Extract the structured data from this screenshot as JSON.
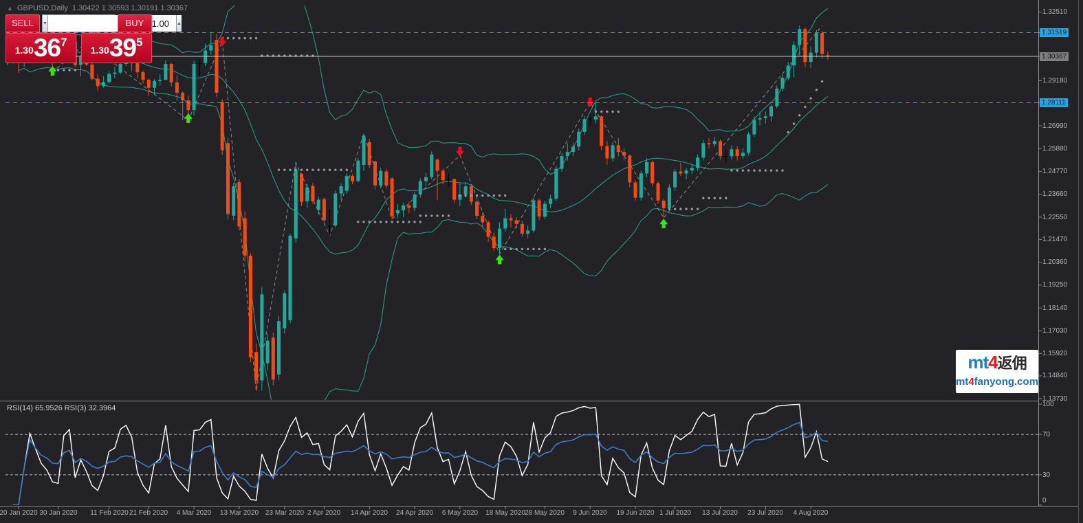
{
  "title": {
    "symbol_period": "GBPUSD,Daily",
    "ohlc_text": "1.30422 1.30593 1.30191 1.30367",
    "collapse_icon": "▲"
  },
  "trade_panel": {
    "sell_label": "SELL",
    "buy_label": "BUY",
    "volume_value": "1.00",
    "spinner_down": "▼",
    "spinner_up": "▲",
    "bid": {
      "small": "1.30",
      "big": "36",
      "sup": "7"
    },
    "ask": {
      "small": "1.30",
      "big": "39",
      "sup": "5"
    }
  },
  "rsi_panel": {
    "label": "RSI(14) 65.9526  RSI(3) 32.3964",
    "levels": [
      70,
      30
    ],
    "axis_labels": [
      {
        "v": 100,
        "t": "100"
      },
      {
        "v": 70,
        "t": "70"
      },
      {
        "v": 30,
        "t": "30"
      },
      {
        "v": 0,
        "t": "0"
      }
    ]
  },
  "watermark": {
    "mt": "mt",
    "four": "4",
    "cn": "返佣",
    "site_prefix": "mt",
    "site_four": "4",
    "site_rest": "fanyong.com"
  },
  "price_axis": [
    {
      "t": "1.32510",
      "v": 1.3251,
      "style": "plain"
    },
    {
      "t": "1.31519",
      "v": 1.31519,
      "style": "cyan"
    },
    {
      "t": "1.30367",
      "v": 1.30367,
      "style": "gray"
    },
    {
      "t": "1.29180",
      "v": 1.2918,
      "style": "plain"
    },
    {
      "t": "1.28111",
      "v": 1.28111,
      "style": "cyan"
    },
    {
      "t": "1.26990",
      "v": 1.2699,
      "style": "plain"
    },
    {
      "t": "1.25880",
      "v": 1.2588,
      "style": "plain"
    },
    {
      "t": "1.24770",
      "v": 1.2477,
      "style": "plain"
    },
    {
      "t": "1.23660",
      "v": 1.2366,
      "style": "plain"
    },
    {
      "t": "1.22550",
      "v": 1.2255,
      "style": "plain"
    },
    {
      "t": "1.21470",
      "v": 1.2147,
      "style": "plain"
    },
    {
      "t": "1.20360",
      "v": 1.2036,
      "style": "plain"
    },
    {
      "t": "1.19250",
      "v": 1.1925,
      "style": "plain"
    },
    {
      "t": "1.18140",
      "v": 1.1814,
      "style": "plain"
    },
    {
      "t": "1.17030",
      "v": 1.1703,
      "style": "plain"
    },
    {
      "t": "1.15920",
      "v": 1.1592,
      "style": "plain"
    },
    {
      "t": "1.14840",
      "v": 1.1484,
      "style": "plain"
    },
    {
      "t": "1.13730",
      "v": 1.1373,
      "style": "plain"
    }
  ],
  "date_axis": [
    {
      "i": 2,
      "t": "20 Jan 2020"
    },
    {
      "i": 9,
      "t": "30 Jan 2020"
    },
    {
      "i": 18,
      "t": "11 Feb 2020"
    },
    {
      "i": 25,
      "t": "21 Feb 2020"
    },
    {
      "i": 33,
      "t": "4 Mar 2020"
    },
    {
      "i": 41,
      "t": "13 Mar 2020"
    },
    {
      "i": 49,
      "t": "23 Mar 2020"
    },
    {
      "i": 56,
      "t": "2 Apr 2020"
    },
    {
      "i": 64,
      "t": "14 Apr 2020"
    },
    {
      "i": 72,
      "t": "24 Apr 2020"
    },
    {
      "i": 80,
      "t": "6 May 2020"
    },
    {
      "i": 88,
      "t": "18 May 2020"
    },
    {
      "i": 95,
      "t": "28 May 2020"
    },
    {
      "i": 103,
      "t": "9 Jun 2020"
    },
    {
      "i": 111,
      "t": "19 Jun 2020"
    },
    {
      "i": 118,
      "t": "1 Jul 2020"
    },
    {
      "i": 126,
      "t": "13 Jul 2020"
    },
    {
      "i": 134,
      "t": "23 Jul 2020"
    },
    {
      "i": 142,
      "t": "4 Aug 2020"
    }
  ],
  "colors": {
    "background": "#232327",
    "bull": "#21a99c",
    "bear": "#f64b0e",
    "doji_dark": "#000000",
    "band": "#26a394",
    "dots": "#9a9a9a",
    "zigzag": "#8c8c8c",
    "cyan_line": "#26a5e3",
    "price_line": "#c9c9c9",
    "axis_line": "#8a8a8a",
    "rsi_fast": "#ffffff",
    "rsi_slow": "#3d7cc9",
    "arrow_up": "#3ce314",
    "arrow_down": "#ea0f1f",
    "panel_red": "#cf0d2c"
  },
  "chart_data": {
    "type": "candlestick-with-indicators",
    "symbol": "GBPUSD",
    "timeframe": "Daily",
    "y_axis_range": [
      1.1363,
      1.3285
    ],
    "indicators": {
      "bollinger": {
        "period": 20,
        "deviation": 2
      },
      "rsi_periods": [
        14,
        3
      ],
      "rsi_levels": [
        70,
        30
      ]
    },
    "hlines": [
      {
        "price": 1.31519,
        "style": "cyan-dashed"
      },
      {
        "price": 1.28111,
        "style": "cyan-dashed"
      },
      {
        "price": 1.30367,
        "style": "current-price"
      }
    ],
    "candles": [
      [
        1.3008,
        1.3085,
        1.2995,
        1.3076
      ],
      [
        1.3076,
        1.308,
        1.3002,
        1.3013
      ],
      [
        1.3013,
        1.3025,
        1.2955,
        1.3005
      ],
      [
        1.3005,
        1.3052,
        1.2985,
        1.3047
      ],
      [
        1.3047,
        1.314,
        1.304,
        1.3135
      ],
      [
        1.3135,
        1.314,
        1.3085,
        1.3105
      ],
      [
        1.3105,
        1.311,
        1.3055,
        1.3073
      ],
      [
        1.3073,
        1.3085,
        1.302,
        1.3057
      ],
      [
        1.3057,
        1.3062,
        1.2954,
        1.3024
      ],
      [
        1.3024,
        1.3045,
        1.2995,
        1.3019
      ],
      [
        1.3019,
        1.3095,
        1.301,
        1.3091
      ],
      [
        1.3091,
        1.3128,
        1.3045,
        1.311
      ],
      [
        1.311,
        1.3115,
        1.2985,
        1.2995
      ],
      [
        1.2995,
        1.3045,
        1.294,
        1.3033
      ],
      [
        1.3033,
        1.307,
        1.299,
        1.2997
      ],
      [
        1.2997,
        1.3005,
        1.292,
        1.2928
      ],
      [
        1.2928,
        1.295,
        1.287,
        1.2892
      ],
      [
        1.2892,
        1.294,
        1.2885,
        1.2912
      ],
      [
        1.2912,
        1.2965,
        1.2905,
        1.2952
      ],
      [
        1.2952,
        1.2985,
        1.293,
        1.2958
      ],
      [
        1.2958,
        1.3015,
        1.295,
        1.3
      ],
      [
        1.3,
        1.3045,
        1.299,
        1.3012
      ],
      [
        1.3012,
        1.302,
        1.2965,
        1.3003
      ],
      [
        1.3003,
        1.301,
        1.293,
        1.296
      ],
      [
        1.296,
        1.2968,
        1.2905,
        1.2923
      ],
      [
        1.2923,
        1.293,
        1.2845,
        1.2884
      ],
      [
        1.2884,
        1.2925,
        1.285,
        1.2917
      ],
      [
        1.2917,
        1.295,
        1.2895,
        1.2923
      ],
      [
        1.2923,
        1.3018,
        1.292,
        1.3
      ],
      [
        1.3,
        1.3005,
        1.289,
        1.291
      ],
      [
        1.291,
        1.2945,
        1.282,
        1.286
      ],
      [
        1.286,
        1.2865,
        1.2726,
        1.2823
      ],
      [
        1.2823,
        1.2845,
        1.2715,
        1.2776
      ],
      [
        1.2776,
        1.3015,
        1.275,
        1.3
      ],
      [
        1.3,
        1.3022,
        1.294,
        1.3005
      ],
      [
        1.3005,
        1.3098,
        1.299,
        1.3065
      ],
      [
        1.3065,
        1.3155,
        1.3045,
        1.309
      ],
      [
        1.3117,
        1.3145,
        1.284,
        1.286
      ],
      [
        1.2815,
        1.283,
        1.2558,
        1.2581
      ],
      [
        1.2615,
        1.264,
        1.2245,
        1.227
      ],
      [
        1.2262,
        1.2422,
        1.224,
        1.2405
      ],
      [
        1.2425,
        1.244,
        1.219,
        1.221
      ],
      [
        1.225,
        1.2285,
        1.204,
        1.2068
      ],
      [
        1.2068,
        1.208,
        1.155,
        1.1575
      ],
      [
        1.16,
        1.164,
        1.141,
        1.1462
      ],
      [
        1.1462,
        1.1915,
        1.1412,
        1.188
      ],
      [
        1.1545,
        1.169,
        1.151,
        1.1655
      ],
      [
        1.167,
        1.1695,
        1.1437,
        1.1466
      ],
      [
        1.149,
        1.1775,
        1.1465,
        1.175
      ],
      [
        1.1715,
        1.19,
        1.169,
        1.1885
      ],
      [
        1.1755,
        1.2175,
        1.174,
        1.2165
      ],
      [
        1.2152,
        1.2522,
        1.213,
        1.2486
      ],
      [
        1.2466,
        1.247,
        1.231,
        1.233
      ],
      [
        1.2333,
        1.2415,
        1.23,
        1.24
      ],
      [
        1.2407,
        1.242,
        1.232,
        1.2333
      ],
      [
        1.229,
        1.2355,
        1.2265,
        1.234
      ],
      [
        1.2343,
        1.235,
        1.223,
        1.2241
      ],
      [
        1.221,
        1.2293,
        1.2165,
        1.2212
      ],
      [
        1.2215,
        1.2385,
        1.2205,
        1.237
      ],
      [
        1.237,
        1.242,
        1.234,
        1.2405
      ],
      [
        1.2384,
        1.2468,
        1.237,
        1.2455
      ],
      [
        1.2455,
        1.2465,
        1.2415,
        1.243
      ],
      [
        1.243,
        1.2545,
        1.2425,
        1.253
      ],
      [
        1.2509,
        1.2655,
        1.248,
        1.2652
      ],
      [
        1.262,
        1.2635,
        1.2495,
        1.2509
      ],
      [
        1.2526,
        1.253,
        1.239,
        1.2409
      ],
      [
        1.2409,
        1.2495,
        1.2395,
        1.248
      ],
      [
        1.2477,
        1.249,
        1.2395,
        1.2409
      ],
      [
        1.2443,
        1.245,
        1.2246,
        1.2259
      ],
      [
        1.2275,
        1.232,
        1.225,
        1.229
      ],
      [
        1.229,
        1.2325,
        1.2255,
        1.2312
      ],
      [
        1.2312,
        1.233,
        1.2275,
        1.23
      ],
      [
        1.23,
        1.238,
        1.2285,
        1.2365
      ],
      [
        1.2365,
        1.2445,
        1.235,
        1.243
      ],
      [
        1.243,
        1.247,
        1.2405,
        1.245
      ],
      [
        1.245,
        1.2575,
        1.244,
        1.256
      ],
      [
        1.2535,
        1.254,
        1.2337,
        1.248
      ],
      [
        1.248,
        1.249,
        1.2415,
        1.2435
      ],
      [
        1.2435,
        1.2465,
        1.2405,
        1.244
      ],
      [
        1.244,
        1.2445,
        1.2325,
        1.234
      ],
      [
        1.234,
        1.242,
        1.231,
        1.2365
      ],
      [
        1.2365,
        1.2425,
        1.235,
        1.2405
      ],
      [
        1.2405,
        1.2415,
        1.2315,
        1.233
      ],
      [
        1.233,
        1.234,
        1.2245,
        1.2262
      ],
      [
        1.2262,
        1.228,
        1.221,
        1.223
      ],
      [
        1.223,
        1.224,
        1.2135,
        1.216
      ],
      [
        1.216,
        1.218,
        1.209,
        1.2105
      ],
      [
        1.2105,
        1.223,
        1.2076,
        1.22
      ],
      [
        1.22,
        1.2295,
        1.2185,
        1.225
      ],
      [
        1.225,
        1.227,
        1.2205,
        1.224
      ],
      [
        1.224,
        1.2255,
        1.22,
        1.2222
      ],
      [
        1.2222,
        1.2235,
        1.216,
        1.2175
      ],
      [
        1.2175,
        1.2215,
        1.2155,
        1.219
      ],
      [
        1.219,
        1.235,
        1.218,
        1.2337
      ],
      [
        1.2337,
        1.2345,
        1.224,
        1.2258
      ],
      [
        1.2258,
        1.2335,
        1.2245,
        1.232
      ],
      [
        1.232,
        1.2365,
        1.23,
        1.2345
      ],
      [
        1.2345,
        1.2505,
        1.2335,
        1.249
      ],
      [
        1.249,
        1.2565,
        1.2475,
        1.2552
      ],
      [
        1.2552,
        1.2615,
        1.253,
        1.2572
      ],
      [
        1.2572,
        1.262,
        1.255,
        1.2598
      ],
      [
        1.2598,
        1.2685,
        1.258,
        1.267
      ],
      [
        1.267,
        1.2745,
        1.2655,
        1.2732
      ],
      [
        1.2732,
        1.276,
        1.27,
        1.273
      ],
      [
        1.273,
        1.2813,
        1.271,
        1.2745
      ],
      [
        1.2745,
        1.275,
        1.258,
        1.2601
      ],
      [
        1.2601,
        1.2625,
        1.251,
        1.2541
      ],
      [
        1.2541,
        1.262,
        1.2525,
        1.2605
      ],
      [
        1.2605,
        1.264,
        1.255,
        1.2572
      ],
      [
        1.2572,
        1.259,
        1.253,
        1.2554
      ],
      [
        1.2554,
        1.256,
        1.24,
        1.2424
      ],
      [
        1.2424,
        1.2435,
        1.2335,
        1.235
      ],
      [
        1.235,
        1.248,
        1.2335,
        1.2468
      ],
      [
        1.2468,
        1.2542,
        1.245,
        1.2523
      ],
      [
        1.2523,
        1.253,
        1.2405,
        1.242
      ],
      [
        1.242,
        1.2428,
        1.232,
        1.2336
      ],
      [
        1.2336,
        1.2345,
        1.2252,
        1.2299
      ],
      [
        1.2299,
        1.2415,
        1.229,
        1.24
      ],
      [
        1.24,
        1.249,
        1.2385,
        1.2477
      ],
      [
        1.2477,
        1.252,
        1.2455,
        1.2467
      ],
      [
        1.2467,
        1.2495,
        1.244,
        1.2482
      ],
      [
        1.2482,
        1.251,
        1.2465,
        1.2495
      ],
      [
        1.2495,
        1.256,
        1.248,
        1.2545
      ],
      [
        1.2545,
        1.263,
        1.253,
        1.2615
      ],
      [
        1.2615,
        1.264,
        1.259,
        1.261
      ],
      [
        1.261,
        1.2645,
        1.2595,
        1.2625
      ],
      [
        1.2625,
        1.2635,
        1.2535,
        1.2552
      ],
      [
        1.2552,
        1.258,
        1.252,
        1.2551
      ],
      [
        1.2551,
        1.2605,
        1.2535,
        1.2585
      ],
      [
        1.2585,
        1.26,
        1.253,
        1.2552
      ],
      [
        1.2552,
        1.259,
        1.254,
        1.2568
      ],
      [
        1.2568,
        1.267,
        1.2555,
        1.2658
      ],
      [
        1.2658,
        1.2745,
        1.2645,
        1.273
      ],
      [
        1.273,
        1.2768,
        1.27,
        1.2736
      ],
      [
        1.2736,
        1.277,
        1.271,
        1.2745
      ],
      [
        1.2745,
        1.2805,
        1.272,
        1.2794
      ],
      [
        1.2794,
        1.2895,
        1.2785,
        1.288
      ],
      [
        1.288,
        1.295,
        1.2865,
        1.2932
      ],
      [
        1.2932,
        1.301,
        1.292,
        1.2992
      ],
      [
        1.2992,
        1.311,
        1.2935,
        1.3092
      ],
      [
        1.3092,
        1.3186,
        1.304,
        1.317
      ],
      [
        1.317,
        1.3178,
        1.2985,
        1.301
      ],
      [
        1.301,
        1.3085,
        1.298,
        1.3055
      ],
      [
        1.3055,
        1.3165,
        1.303,
        1.315
      ],
      [
        1.315,
        1.316,
        1.3025,
        1.3048
      ],
      [
        1.30422,
        1.30593,
        1.30191,
        1.30367
      ]
    ],
    "signal_arrows": [
      {
        "i": 8,
        "price": 1.299,
        "dir": "up"
      },
      {
        "i": 32,
        "price": 1.276,
        "dir": "up"
      },
      {
        "i": 38,
        "price": 1.3085,
        "dir": "down"
      },
      {
        "i": 80,
        "price": 1.255,
        "dir": "down"
      },
      {
        "i": 87,
        "price": 1.2073,
        "dir": "up"
      },
      {
        "i": 103,
        "price": 1.279,
        "dir": "down"
      },
      {
        "i": 116,
        "price": 1.2248,
        "dir": "up"
      }
    ],
    "dot_runs": [
      {
        "i0": 9,
        "i1": 12,
        "p0": 1.297,
        "p1": 1.297
      },
      {
        "i0": 38,
        "i1": 44,
        "p0": 1.3125,
        "p1": 1.3125
      },
      {
        "i0": 45,
        "i1": 54,
        "p0": 1.304,
        "p1": 1.304
      },
      {
        "i0": 48,
        "i1": 60,
        "p0": 1.2485,
        "p1": 1.2485
      },
      {
        "i0": 62,
        "i1": 73,
        "p0": 1.2232,
        "p1": 1.2232
      },
      {
        "i0": 73,
        "i1": 78,
        "p0": 1.2262,
        "p1": 1.2262
      },
      {
        "i0": 80,
        "i1": 88,
        "p0": 1.236,
        "p1": 1.236
      },
      {
        "i0": 88,
        "i1": 95,
        "p0": 1.21,
        "p1": 1.21
      },
      {
        "i0": 104,
        "i1": 108,
        "p0": 1.2768,
        "p1": 1.2768
      },
      {
        "i0": 117,
        "i1": 122,
        "p0": 1.2295,
        "p1": 1.2295
      },
      {
        "i0": 123,
        "i1": 127,
        "p0": 1.2348,
        "p1": 1.2348
      },
      {
        "i0": 128,
        "i1": 137,
        "p0": 1.2482,
        "p1": 1.2482
      },
      {
        "i0": 138,
        "i1": 144,
        "p0": 1.2668,
        "p1": 1.2915
      }
    ],
    "zigzag": [
      [
        8,
        1.296
      ],
      [
        14,
        1.3105
      ],
      [
        32,
        1.2726
      ],
      [
        38,
        1.311
      ],
      [
        44,
        1.141
      ],
      [
        51,
        1.252
      ],
      [
        57,
        1.2165
      ],
      [
        63,
        1.2658
      ],
      [
        68,
        1.2246
      ],
      [
        80,
        1.2555
      ],
      [
        87,
        1.2076
      ],
      [
        103,
        1.2813
      ],
      [
        116,
        1.2252
      ],
      [
        144,
        1.3186
      ]
    ]
  }
}
